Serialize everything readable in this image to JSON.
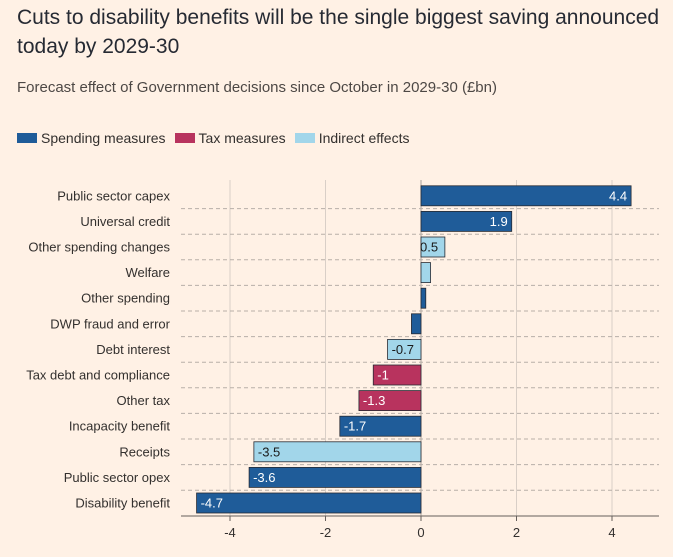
{
  "header": {
    "title": "Cuts to disability benefits will be the single biggest saving announced today by 2029-30",
    "subtitle": "Forecast effect of Government decisions since October in 2029-30 (£bn)"
  },
  "legend": [
    {
      "label": "Spending measures",
      "color": "#1f5c99"
    },
    {
      "label": "Tax measures",
      "color": "#b8335e"
    },
    {
      "label": "Indirect effects",
      "color": "#a2d6ea"
    }
  ],
  "chart_data": {
    "type": "bar",
    "orientation": "horizontal",
    "title": "Cuts to disability benefits will be the single biggest saving announced today by 2029-30",
    "subtitle": "Forecast effect of Government decisions since October in 2029-30 (£bn)",
    "xlim": [
      -5,
      5
    ],
    "xticks": [
      -4,
      -2,
      0,
      2,
      4
    ],
    "grid": true,
    "legend_position": "top-left",
    "series_colors": {
      "Spending measures": "#1f5c99",
      "Tax measures": "#b8335e",
      "Indirect effects": "#a2d6ea"
    },
    "bars": [
      {
        "category": "Public sector capex",
        "value": 4.4,
        "series": "Spending measures",
        "label": "4.4"
      },
      {
        "category": "Universal credit",
        "value": 1.9,
        "series": "Spending measures",
        "label": "1.9"
      },
      {
        "category": "Other spending changes",
        "value": 0.5,
        "series": "Indirect effects",
        "label": "0.5"
      },
      {
        "category": "Welfare",
        "value": 0.2,
        "series": "Indirect effects",
        "label": ""
      },
      {
        "category": "Other spending",
        "value": 0.1,
        "series": "Spending measures",
        "label": ""
      },
      {
        "category": "DWP fraud and error",
        "value": -0.2,
        "series": "Spending measures",
        "label": ""
      },
      {
        "category": "Debt interest",
        "value": -0.7,
        "series": "Indirect effects",
        "label": "-0.7"
      },
      {
        "category": "Tax debt and compliance",
        "value": -1,
        "series": "Tax measures",
        "label": "-1"
      },
      {
        "category": "Other tax",
        "value": -1.3,
        "series": "Tax measures",
        "label": "-1.3"
      },
      {
        "category": "Incapacity benefit",
        "value": -1.7,
        "series": "Spending measures",
        "label": "-1.7"
      },
      {
        "category": "Receipts",
        "value": -3.5,
        "series": "Indirect effects",
        "label": "-3.5"
      },
      {
        "category": "Public sector opex",
        "value": -3.6,
        "series": "Spending measures",
        "label": "-3.6"
      },
      {
        "category": "Disability benefit",
        "value": -4.7,
        "series": "Spending measures",
        "label": "-4.7"
      }
    ]
  }
}
